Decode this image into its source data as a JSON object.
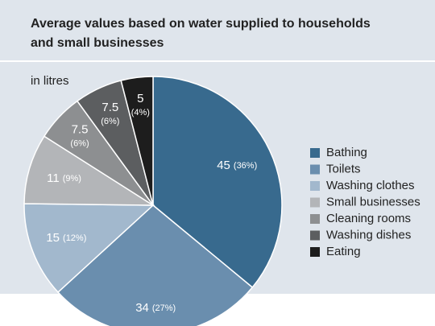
{
  "chart_data": {
    "type": "pie",
    "title": "Average values based on water supplied to households",
    "title_line2": "and small businesses",
    "subtitle": "in litres",
    "categories": [
      "Bathing",
      "Toilets",
      "Washing clothes",
      "Small businesses",
      "Cleaning rooms",
      "Washing dishes",
      "Eating"
    ],
    "values": [
      45,
      34,
      15,
      11,
      7.5,
      7.5,
      5
    ],
    "percent_labels": [
      "(36%)",
      "(27%)",
      "(12%)",
      "(9%)",
      "(6%)",
      "(6%)",
      "(4%)"
    ],
    "colors": [
      "#386a8e",
      "#6a8eae",
      "#a2b8cd",
      "#b3b5b8",
      "#8d8f91",
      "#5c5e60",
      "#1d1d1d"
    ],
    "legend": "right"
  }
}
